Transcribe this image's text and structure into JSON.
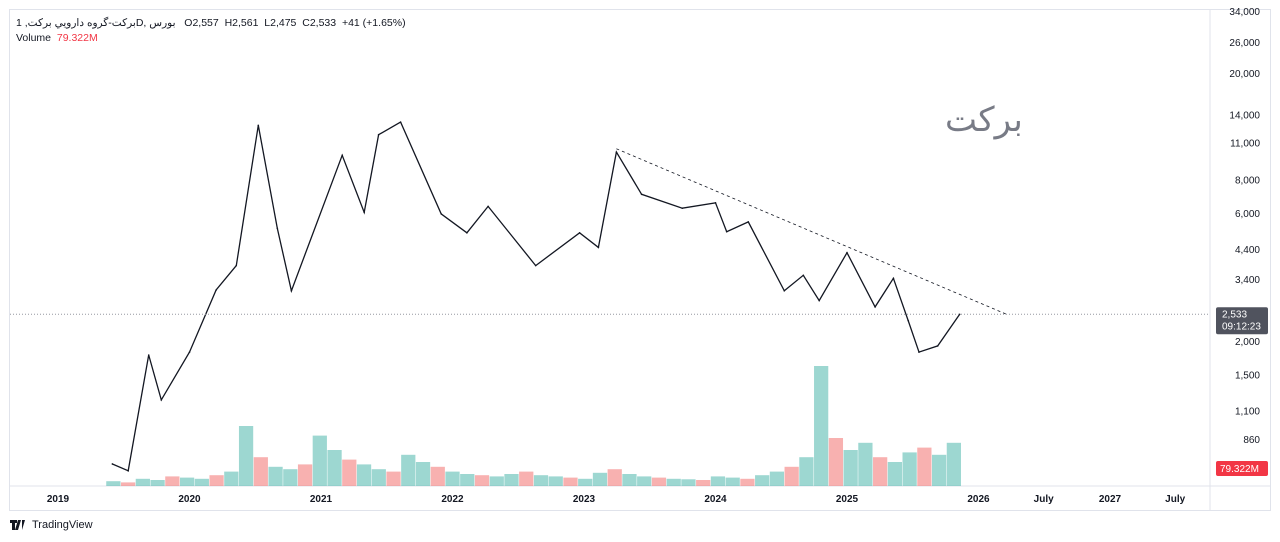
{
  "legend": {
    "symbol": "برکت-گروه دارويي برکت, 1D, بورس",
    "open": "O2,557",
    "high": "H2,561",
    "low": "L2,475",
    "close": "C2,533",
    "change": "+41 (+1.65%)",
    "volume_label": "Volume",
    "volume_value": "79.322M"
  },
  "watermark": "برکت",
  "brand": "TradingView",
  "colors": {
    "candle": "#131722",
    "vol_up": "#26a69a",
    "vol_down": "#ef5350",
    "price_tag": "#50535e",
    "volume_tag": "#f23645"
  },
  "chart_data": {
    "type": "candlestick-line",
    "y_scale": "log",
    "y_ticks": [
      34000,
      26000,
      20000,
      14000,
      11000,
      8000,
      6000,
      4400,
      3400,
      2000,
      1500,
      1100,
      860
    ],
    "x_ticks": [
      {
        "label": "2019",
        "date": "2019-01-01"
      },
      {
        "label": "2020",
        "date": "2020-01-01"
      },
      {
        "label": "2021",
        "date": "2021-01-01"
      },
      {
        "label": "2022",
        "date": "2022-01-01"
      },
      {
        "label": "2023",
        "date": "2023-01-01"
      },
      {
        "label": "2024",
        "date": "2024-01-01"
      },
      {
        "label": "2025",
        "date": "2025-01-01"
      },
      {
        "label": "2026",
        "date": "2026-01-01"
      },
      {
        "label": "July",
        "date": "2026-07-01"
      },
      {
        "label": "2027",
        "date": "2027-01-01"
      },
      {
        "label": "July",
        "date": "2027-07-01"
      }
    ],
    "last_price": "2,533",
    "countdown": "09:12:23",
    "volume_tag": "79.322M",
    "price": [
      [
        "2019-06-01",
        700
      ],
      [
        "2019-07-15",
        660
      ],
      [
        "2019-09-10",
        1785
      ],
      [
        "2019-10-15",
        1214
      ],
      [
        "2020-01-01",
        1830
      ],
      [
        "2020-03-15",
        3120
      ],
      [
        "2020-05-10",
        3850
      ],
      [
        "2020-07-10",
        12850
      ],
      [
        "2020-09-01",
        5300
      ],
      [
        "2020-10-10",
        3100
      ],
      [
        "2021-03-01",
        9930
      ],
      [
        "2021-05-01",
        6080
      ],
      [
        "2021-06-10",
        11850
      ],
      [
        "2021-08-10",
        13200
      ],
      [
        "2021-12-01",
        6000
      ],
      [
        "2022-02-10",
        5100
      ],
      [
        "2022-04-10",
        6400
      ],
      [
        "2022-08-20",
        3850
      ],
      [
        "2022-12-20",
        5100
      ],
      [
        "2023-02-10",
        4500
      ],
      [
        "2023-04-01",
        10200
      ],
      [
        "2023-06-10",
        7100
      ],
      [
        "2023-10-01",
        6300
      ],
      [
        "2024-01-01",
        6600
      ],
      [
        "2024-02-01",
        5150
      ],
      [
        "2024-04-01",
        5600
      ],
      [
        "2024-07-10",
        3100
      ],
      [
        "2024-09-01",
        3540
      ],
      [
        "2024-10-15",
        2850
      ],
      [
        "2025-01-01",
        4300
      ],
      [
        "2025-03-20",
        2700
      ],
      [
        "2025-05-10",
        3450
      ],
      [
        "2025-06-20",
        2400
      ],
      [
        "2025-07-20",
        1830
      ],
      [
        "2025-09-10",
        1930
      ],
      [
        "2025-11-10",
        2533
      ]
    ],
    "trendline": [
      [
        "2023-04-01",
        10500
      ],
      [
        "2026-03-20",
        2533
      ]
    ],
    "volume_m": [
      20,
      15,
      30,
      25,
      40,
      35,
      30,
      45,
      60,
      250,
      120,
      80,
      70,
      90,
      210,
      150,
      110,
      90,
      70,
      60,
      130,
      100,
      80,
      60,
      50,
      45,
      40,
      50,
      60,
      45,
      40,
      35,
      30,
      55,
      70,
      50,
      40,
      35,
      30,
      28,
      25,
      40,
      35,
      30,
      45,
      60,
      80,
      120,
      500,
      200,
      150,
      180,
      120,
      100,
      140,
      160,
      130,
      180
    ]
  }
}
